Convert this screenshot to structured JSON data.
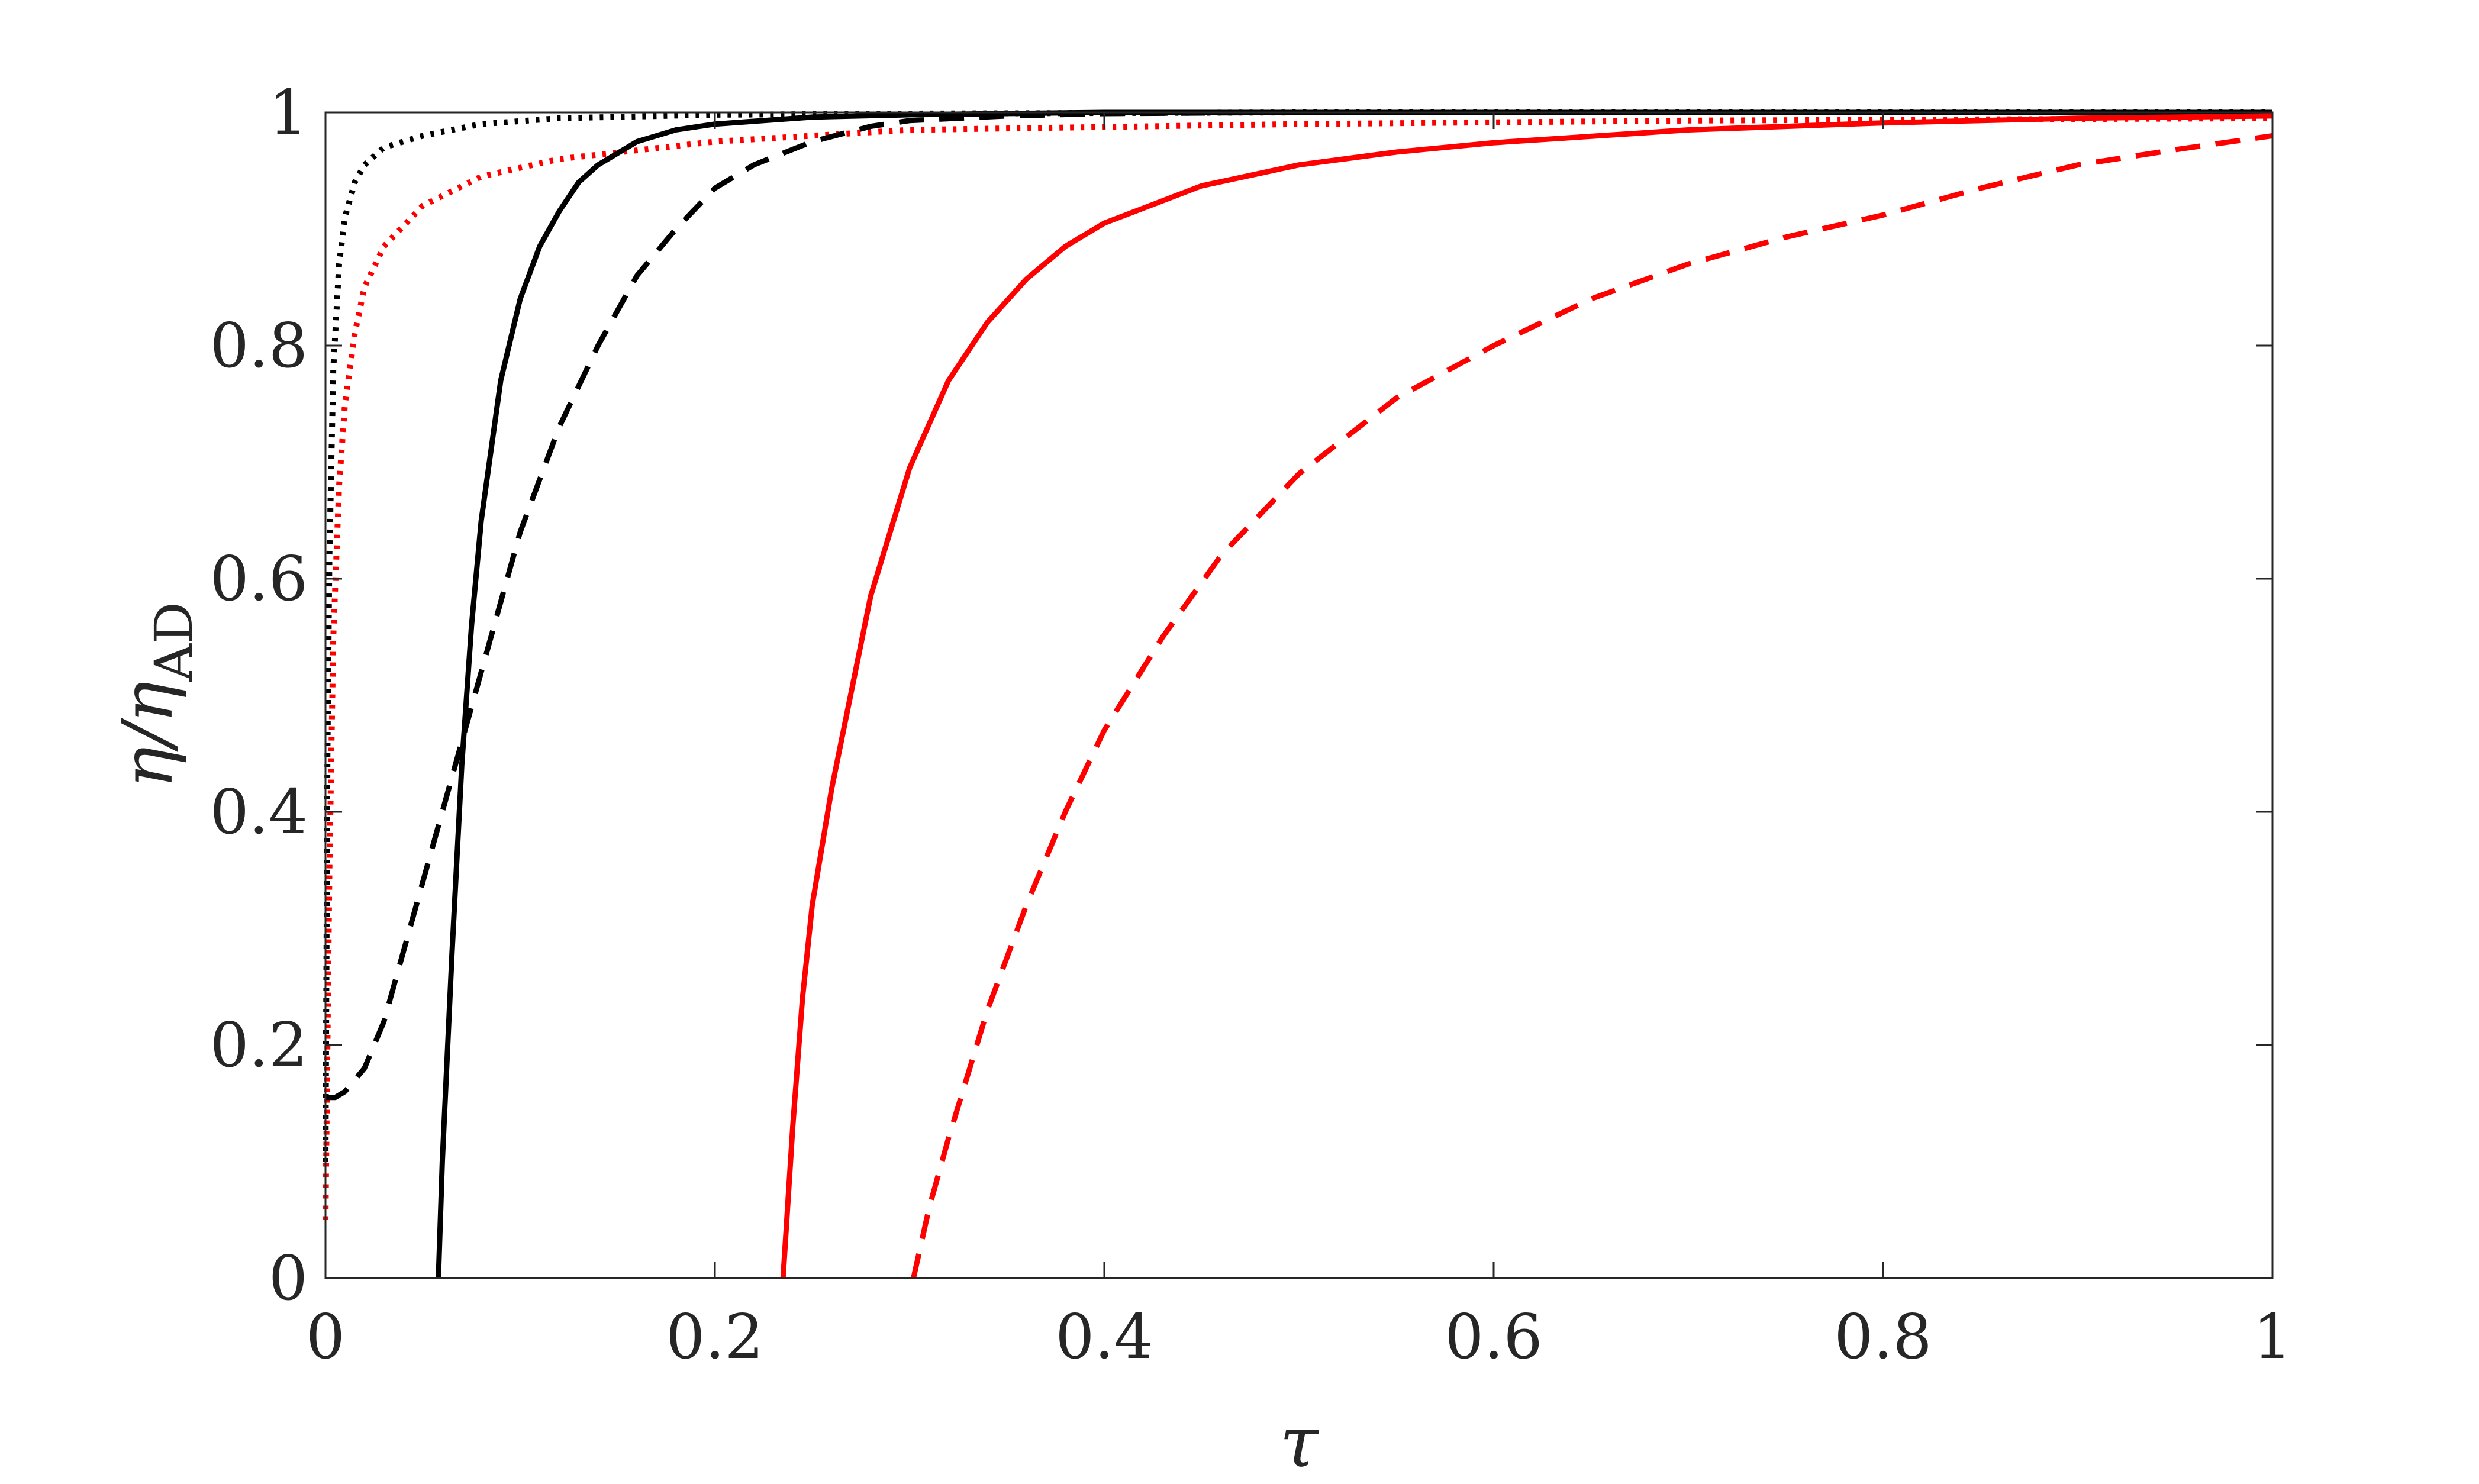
{
  "chart_data": {
    "type": "line",
    "xlabel": "τ",
    "ylabel": {
      "main": "η/η",
      "subscript": "AD"
    },
    "xlim": [
      0,
      1
    ],
    "ylim": [
      0,
      1
    ],
    "xticks": [
      0,
      0.2,
      0.4,
      0.6,
      0.8,
      1
    ],
    "xtick_labels": [
      "0",
      "0.2",
      "0.4",
      "0.6",
      "0.8",
      "1"
    ],
    "yticks": [
      0,
      0.2,
      0.4,
      0.6,
      0.8,
      1
    ],
    "ytick_labels": [
      "0",
      "0.2",
      "0.4",
      "0.6",
      "0.8",
      "1"
    ],
    "grid": false,
    "legend": "none",
    "series": [
      {
        "color": "#000000",
        "dash": "dotted",
        "points": [
          [
            0.0,
            0.1
          ],
          [
            0.001,
            0.45
          ],
          [
            0.002,
            0.62
          ],
          [
            0.004,
            0.78
          ],
          [
            0.007,
            0.87
          ],
          [
            0.01,
            0.91
          ],
          [
            0.015,
            0.94
          ],
          [
            0.02,
            0.955
          ],
          [
            0.03,
            0.97
          ],
          [
            0.05,
            0.98
          ],
          [
            0.08,
            0.99
          ],
          [
            0.12,
            0.995
          ],
          [
            0.2,
            0.998
          ],
          [
            0.3,
            0.999
          ],
          [
            0.5,
            1.0
          ],
          [
            1.0,
            1.0
          ]
        ]
      },
      {
        "color": "#ff0000",
        "dash": "dotted",
        "points": [
          [
            0.0,
            0.05
          ],
          [
            0.001,
            0.2
          ],
          [
            0.002,
            0.35
          ],
          [
            0.004,
            0.55
          ],
          [
            0.007,
            0.68
          ],
          [
            0.01,
            0.75
          ],
          [
            0.015,
            0.81
          ],
          [
            0.02,
            0.85
          ],
          [
            0.03,
            0.885
          ],
          [
            0.05,
            0.92
          ],
          [
            0.08,
            0.945
          ],
          [
            0.12,
            0.96
          ],
          [
            0.2,
            0.975
          ],
          [
            0.3,
            0.985
          ],
          [
            0.5,
            0.99
          ],
          [
            0.7,
            0.993
          ],
          [
            1.0,
            0.995
          ]
        ]
      },
      {
        "color": "#000000",
        "dash": "solid",
        "points": [
          [
            0.058,
            0.0
          ],
          [
            0.06,
            0.1
          ],
          [
            0.065,
            0.28
          ],
          [
            0.07,
            0.44
          ],
          [
            0.075,
            0.56
          ],
          [
            0.08,
            0.65
          ],
          [
            0.09,
            0.77
          ],
          [
            0.1,
            0.84
          ],
          [
            0.11,
            0.885
          ],
          [
            0.12,
            0.915
          ],
          [
            0.13,
            0.94
          ],
          [
            0.14,
            0.955
          ],
          [
            0.16,
            0.975
          ],
          [
            0.18,
            0.985
          ],
          [
            0.2,
            0.99
          ],
          [
            0.25,
            0.996
          ],
          [
            0.3,
            0.998
          ],
          [
            0.4,
            1.0
          ],
          [
            1.0,
            1.0
          ]
        ]
      },
      {
        "color": "#000000",
        "dash": "dashed",
        "points": [
          [
            0.0,
            0.155
          ],
          [
            0.005,
            0.155
          ],
          [
            0.01,
            0.16
          ],
          [
            0.02,
            0.18
          ],
          [
            0.03,
            0.22
          ],
          [
            0.04,
            0.28
          ],
          [
            0.05,
            0.34
          ],
          [
            0.06,
            0.4
          ],
          [
            0.07,
            0.46
          ],
          [
            0.08,
            0.52
          ],
          [
            0.09,
            0.58
          ],
          [
            0.1,
            0.64
          ],
          [
            0.12,
            0.73
          ],
          [
            0.14,
            0.8
          ],
          [
            0.16,
            0.86
          ],
          [
            0.18,
            0.9
          ],
          [
            0.2,
            0.935
          ],
          [
            0.22,
            0.955
          ],
          [
            0.25,
            0.975
          ],
          [
            0.28,
            0.988
          ],
          [
            0.3,
            0.993
          ],
          [
            0.35,
            0.997
          ],
          [
            0.4,
            0.999
          ],
          [
            0.5,
            1.0
          ],
          [
            1.0,
            1.0
          ]
        ]
      },
      {
        "color": "#ff0000",
        "dash": "solid",
        "points": [
          [
            0.235,
            0.0
          ],
          [
            0.24,
            0.13
          ],
          [
            0.245,
            0.24
          ],
          [
            0.25,
            0.32
          ],
          [
            0.26,
            0.42
          ],
          [
            0.28,
            0.585
          ],
          [
            0.3,
            0.695
          ],
          [
            0.32,
            0.77
          ],
          [
            0.34,
            0.82
          ],
          [
            0.36,
            0.857
          ],
          [
            0.38,
            0.885
          ],
          [
            0.4,
            0.905
          ],
          [
            0.45,
            0.937
          ],
          [
            0.5,
            0.955
          ],
          [
            0.55,
            0.966
          ],
          [
            0.6,
            0.974
          ],
          [
            0.7,
            0.985
          ],
          [
            0.8,
            0.991
          ],
          [
            0.9,
            0.995
          ],
          [
            1.0,
            0.997
          ]
        ]
      },
      {
        "color": "#ff0000",
        "dash": "dashed",
        "points": [
          [
            0.302,
            0.0
          ],
          [
            0.31,
            0.06
          ],
          [
            0.32,
            0.12
          ],
          [
            0.34,
            0.23
          ],
          [
            0.36,
            0.32
          ],
          [
            0.38,
            0.4
          ],
          [
            0.4,
            0.47
          ],
          [
            0.43,
            0.55
          ],
          [
            0.46,
            0.62
          ],
          [
            0.5,
            0.69
          ],
          [
            0.55,
            0.755
          ],
          [
            0.6,
            0.8
          ],
          [
            0.65,
            0.84
          ],
          [
            0.7,
            0.87
          ],
          [
            0.75,
            0.893
          ],
          [
            0.8,
            0.912
          ],
          [
            0.85,
            0.935
          ],
          [
            0.9,
            0.955
          ],
          [
            0.95,
            0.968
          ],
          [
            1.0,
            0.98
          ]
        ]
      }
    ]
  }
}
